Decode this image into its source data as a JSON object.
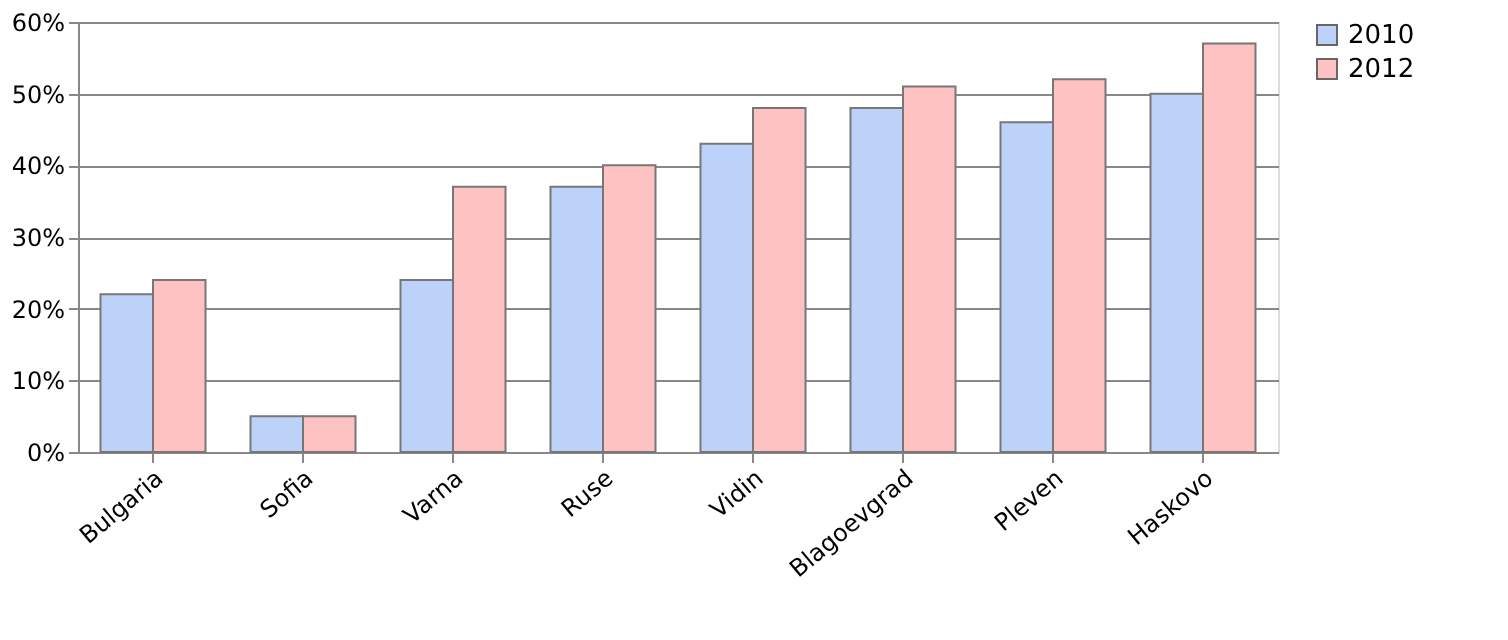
{
  "chart_data": {
    "type": "bar",
    "categories": [
      "Bulgaria",
      "Sofia",
      "Varna",
      "Ruse",
      "Vidin",
      "Blagoevgrad",
      "Pleven",
      "Haskovo"
    ],
    "series": [
      {
        "name": "2010",
        "color": "#bcd2f8",
        "values": [
          22,
          5,
          24,
          37,
          43,
          48,
          46,
          50
        ]
      },
      {
        "name": "2012",
        "color": "#ffc2c2",
        "values": [
          24,
          5,
          37,
          40,
          48,
          51,
          52,
          57
        ]
      }
    ],
    "ylim": [
      0,
      60
    ],
    "yticks": [
      {
        "value": 0,
        "label": "0%"
      },
      {
        "value": 10,
        "label": "10%"
      },
      {
        "value": 20,
        "label": "20%"
      },
      {
        "value": 30,
        "label": "30%"
      },
      {
        "value": 40,
        "label": "40%"
      },
      {
        "value": 50,
        "label": "50%"
      },
      {
        "value": 60,
        "label": "60%"
      }
    ],
    "grid": "y",
    "legend": "right"
  }
}
